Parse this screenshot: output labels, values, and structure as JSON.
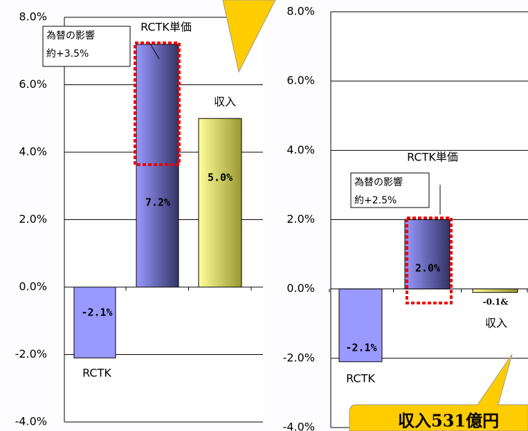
{
  "chart_data": [
    {
      "type": "bar",
      "categories": [
        "RCTK",
        "RCTK単価",
        "収入"
      ],
      "values": [
        -2.1,
        7.2,
        5.0
      ],
      "value_labels": [
        "-2.1%",
        "7.2%",
        "5.0%"
      ],
      "colors": [
        "#9999ff",
        "#9999ff",
        "#ffff99"
      ],
      "ylim": [
        -4,
        8
      ],
      "yticks": [
        {
          "value": -4,
          "label": "-4.0%"
        },
        {
          "value": -2,
          "label": "-2.0%"
        },
        {
          "value": 0,
          "label": "0.0%"
        },
        {
          "value": 2,
          "label": "2.0%"
        },
        {
          "value": 4,
          "label": "4.0%"
        },
        {
          "value": 6,
          "label": "6.0%"
        },
        {
          "value": 8,
          "label": "8.0%"
        }
      ],
      "grid": true,
      "annotation": [
        "為替の影響",
        "約+3.5%"
      ]
    },
    {
      "type": "bar",
      "categories": [
        "RCTK",
        "RCTK単価",
        "収入"
      ],
      "values": [
        -2.1,
        2.0,
        -0.1
      ],
      "value_labels": [
        "-2.1%",
        "2.0%",
        "-0.1&"
      ],
      "colors": [
        "#9999ff",
        "#9999ff",
        "#ffff99"
      ],
      "ylim": [
        -4,
        8
      ],
      "yticks": [
        {
          "value": -4,
          "label": "-4.0%"
        },
        {
          "value": -2,
          "label": "-2.0%"
        },
        {
          "value": 0,
          "label": "0.0%"
        },
        {
          "value": 2,
          "label": "2.0%"
        },
        {
          "value": 4,
          "label": "4.0%"
        },
        {
          "value": 6,
          "label": "6.0%"
        },
        {
          "value": 8,
          "label": "8.0%"
        }
      ],
      "grid": true,
      "annotation": [
        "為替の影響",
        "約+2.5%"
      ],
      "callout": "収入531億円"
    }
  ]
}
